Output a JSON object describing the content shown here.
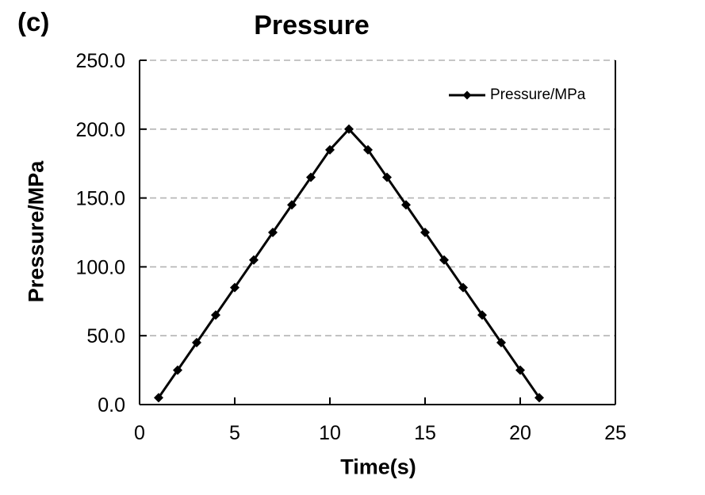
{
  "figure_label": "(c)",
  "chart_data": {
    "type": "line",
    "title": "Pressure",
    "xlabel": "Time(s)",
    "ylabel": "Pressure/MPa",
    "xlim": [
      0,
      25
    ],
    "ylim": [
      0,
      250
    ],
    "x_ticks": [
      0,
      5,
      10,
      15,
      20,
      25
    ],
    "y_ticks": [
      0,
      50,
      100,
      150,
      200,
      250
    ],
    "x_tick_labels": [
      "0",
      "5",
      "10",
      "15",
      "20",
      "25"
    ],
    "y_tick_labels": [
      "0.0",
      "50.0",
      "100.0",
      "150.0",
      "200.0",
      "250.0"
    ],
    "grid": "horizontal dashed",
    "legend": {
      "position": "inside top-right",
      "entries": [
        "Pressure/MPa"
      ]
    },
    "series": [
      {
        "name": "Pressure/MPa",
        "marker": "diamond",
        "x": [
          1,
          2,
          3,
          4,
          5,
          6,
          7,
          8,
          9,
          10,
          11,
          12,
          13,
          14,
          15,
          16,
          17,
          18,
          19,
          20,
          21
        ],
        "y": [
          5,
          25,
          45,
          65,
          85,
          105,
          125,
          145,
          165,
          185,
          200,
          185,
          165,
          145,
          125,
          105,
          85,
          65,
          45,
          25,
          5
        ]
      }
    ],
    "colors": {
      "line": "#000000",
      "marker": "#000000",
      "grid": "#b3b3b3",
      "axis": "#000000",
      "text": "#000000"
    }
  }
}
